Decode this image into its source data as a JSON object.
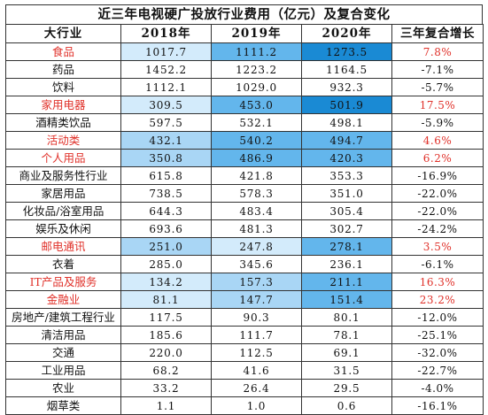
{
  "chart_data": {
    "type": "table",
    "title": "近三年电视硬广投放行业费用（亿元）及复合变化",
    "columns": [
      "大行业",
      "2018年",
      "2019年",
      "2020年",
      "三年复合增长"
    ],
    "colors": {
      "highlight_text": "#e0312a",
      "shade_dark": "#1a8ad4",
      "shade_mid": "#63b6ec",
      "shade_light": "#a9d6f5",
      "shade_faint": "#d3ebfb"
    },
    "rows": [
      {
        "industry": "食品",
        "highlight": true,
        "v2018": "1017.7",
        "v2019": "1111.2",
        "v2020": "1273.5",
        "growth": "7.8%",
        "growth_positive": true,
        "shade": [
          "faint",
          "mid",
          "dark"
        ]
      },
      {
        "industry": "药品",
        "highlight": false,
        "v2018": "1452.2",
        "v2019": "1223.2",
        "v2020": "1164.5",
        "growth": "-7.1%",
        "growth_positive": false,
        "shade": [
          "",
          "",
          ""
        ]
      },
      {
        "industry": "饮料",
        "highlight": false,
        "v2018": "1112.1",
        "v2019": "1029.0",
        "v2020": "932.3",
        "growth": "-5.7%",
        "growth_positive": false,
        "shade": [
          "",
          "",
          ""
        ]
      },
      {
        "industry": "家用电器",
        "highlight": true,
        "v2018": "309.5",
        "v2019": "453.0",
        "v2020": "501.9",
        "growth": "17.5%",
        "growth_positive": true,
        "shade": [
          "faint",
          "mid",
          "dark"
        ]
      },
      {
        "industry": "酒精类饮品",
        "highlight": false,
        "v2018": "597.5",
        "v2019": "532.1",
        "v2020": "498.1",
        "growth": "-5.9%",
        "growth_positive": false,
        "shade": [
          "",
          "",
          ""
        ]
      },
      {
        "industry": "活动类",
        "highlight": true,
        "v2018": "432.1",
        "v2019": "540.2",
        "v2020": "494.7",
        "growth": "4.6%",
        "growth_positive": true,
        "shade": [
          "light",
          "mid",
          "mid"
        ]
      },
      {
        "industry": "个人用品",
        "highlight": true,
        "v2018": "350.8",
        "v2019": "486.9",
        "v2020": "420.3",
        "growth": "6.2%",
        "growth_positive": true,
        "shade": [
          "light",
          "mid",
          "mid"
        ]
      },
      {
        "industry": "商业及服务性行业",
        "highlight": false,
        "v2018": "615.8",
        "v2019": "421.8",
        "v2020": "353.3",
        "growth": "-16.9%",
        "growth_positive": false,
        "shade": [
          "",
          "",
          ""
        ]
      },
      {
        "industry": "家居用品",
        "highlight": false,
        "v2018": "738.5",
        "v2019": "578.3",
        "v2020": "351.0",
        "growth": "-22.0%",
        "growth_positive": false,
        "shade": [
          "",
          "",
          ""
        ]
      },
      {
        "industry": "化妆品/浴室用品",
        "highlight": false,
        "v2018": "644.3",
        "v2019": "483.4",
        "v2020": "305.4",
        "growth": "-22.0%",
        "growth_positive": false,
        "shade": [
          "",
          "",
          ""
        ]
      },
      {
        "industry": "娱乐及休闲",
        "highlight": false,
        "v2018": "693.6",
        "v2019": "481.3",
        "v2020": "302.7",
        "growth": "-24.2%",
        "growth_positive": false,
        "shade": [
          "",
          "",
          ""
        ]
      },
      {
        "industry": "邮电通讯",
        "highlight": true,
        "v2018": "251.0",
        "v2019": "247.8",
        "v2020": "278.1",
        "growth": "3.5%",
        "growth_positive": true,
        "shade": [
          "light",
          "faint",
          "mid"
        ]
      },
      {
        "industry": "衣着",
        "highlight": false,
        "v2018": "285.0",
        "v2019": "345.6",
        "v2020": "236.1",
        "growth": "-6.1%",
        "growth_positive": false,
        "shade": [
          "",
          "",
          ""
        ]
      },
      {
        "industry": "IT产品及服务",
        "highlight": true,
        "v2018": "134.2",
        "v2019": "157.3",
        "v2020": "211.1",
        "growth": "16.3%",
        "growth_positive": true,
        "shade": [
          "faint",
          "light",
          "mid"
        ]
      },
      {
        "industry": "金融业",
        "highlight": true,
        "v2018": "81.1",
        "v2019": "147.7",
        "v2020": "151.4",
        "growth": "23.2%",
        "growth_positive": true,
        "shade": [
          "faint",
          "light",
          "mid"
        ]
      },
      {
        "industry": "房地产/建筑工程行业",
        "highlight": false,
        "v2018": "117.5",
        "v2019": "90.3",
        "v2020": "80.1",
        "growth": "-12.0%",
        "growth_positive": false,
        "shade": [
          "",
          "",
          ""
        ]
      },
      {
        "industry": "清洁用品",
        "highlight": false,
        "v2018": "185.6",
        "v2019": "111.7",
        "v2020": "78.1",
        "growth": "-25.1%",
        "growth_positive": false,
        "shade": [
          "",
          "",
          ""
        ]
      },
      {
        "industry": "交通",
        "highlight": false,
        "v2018": "220.0",
        "v2019": "112.5",
        "v2020": "69.1",
        "growth": "-32.0%",
        "growth_positive": false,
        "shade": [
          "",
          "",
          ""
        ]
      },
      {
        "industry": "工业用品",
        "highlight": false,
        "v2018": "68.2",
        "v2019": "41.6",
        "v2020": "31.5",
        "growth": "-22.7%",
        "growth_positive": false,
        "shade": [
          "",
          "",
          ""
        ]
      },
      {
        "industry": "农业",
        "highlight": false,
        "v2018": "33.2",
        "v2019": "26.4",
        "v2020": "29.5",
        "growth": "-4.0%",
        "growth_positive": false,
        "shade": [
          "",
          "",
          ""
        ]
      },
      {
        "industry": "烟草类",
        "highlight": false,
        "v2018": "1.1",
        "v2019": "1.0",
        "v2020": "0.6",
        "growth": "-16.1%",
        "growth_positive": false,
        "shade": [
          "",
          "",
          ""
        ]
      }
    ]
  }
}
